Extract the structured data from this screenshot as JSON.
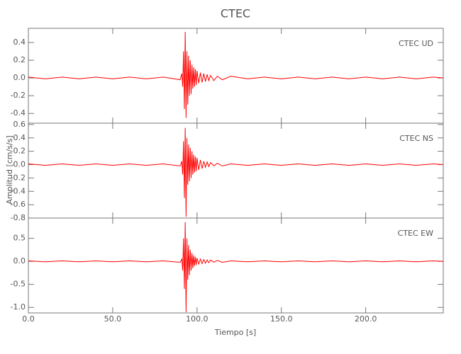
{
  "chart_data": [
    {
      "type": "line",
      "title": "CTEC",
      "label": "CTEC   UD",
      "color": "#ff0000",
      "x": [
        0,
        10,
        20,
        30,
        40,
        50,
        60,
        70,
        80,
        90,
        91,
        91.5,
        92,
        92.5,
        93,
        93.5,
        94,
        94.5,
        95,
        95.5,
        96,
        96.5,
        97,
        97.5,
        98,
        98.5,
        99,
        99.5,
        100,
        101,
        102,
        103,
        104,
        105,
        106,
        107,
        108,
        110,
        112,
        115,
        120,
        130,
        140,
        150,
        160,
        170,
        180,
        190,
        200,
        210,
        220,
        230,
        240,
        246
      ],
      "values": [
        0.01,
        -0.01,
        0.01,
        -0.01,
        0.01,
        -0.01,
        0.01,
        -0.01,
        0.01,
        -0.02,
        0.05,
        -0.1,
        0.3,
        -0.35,
        0.52,
        -0.45,
        0.3,
        -0.3,
        0.25,
        -0.2,
        0.2,
        -0.18,
        0.15,
        -0.12,
        0.12,
        -0.1,
        0.1,
        -0.08,
        0.08,
        -0.06,
        0.06,
        -0.05,
        0.05,
        -0.04,
        0.04,
        -0.03,
        0.03,
        -0.03,
        0.02,
        -0.02,
        0.02,
        -0.01,
        0.01,
        -0.01,
        0.01,
        -0.01,
        0.01,
        -0.01,
        0.01,
        -0.01,
        0.01,
        -0.01,
        0.01,
        0
      ],
      "xlim": [
        0,
        246
      ],
      "xticks": [
        0,
        50,
        100,
        150,
        200
      ],
      "ylim": [
        -0.51,
        0.56
      ],
      "yticks": [
        -0.4,
        -0.2,
        0.0,
        0.2,
        0.4
      ]
    },
    {
      "type": "line",
      "ylabel": "Amplitud [cm/s/s]",
      "label": "CTEC   NS",
      "color": "#ff0000",
      "x": [
        0,
        10,
        20,
        30,
        40,
        50,
        60,
        70,
        80,
        90,
        91,
        91.5,
        92,
        92.5,
        93,
        93.5,
        94,
        94.5,
        95,
        95.5,
        96,
        96.5,
        97,
        97.5,
        98,
        98.5,
        99,
        99.5,
        100,
        101,
        102,
        103,
        104,
        105,
        106,
        107,
        108,
        110,
        112,
        115,
        120,
        130,
        140,
        150,
        160,
        170,
        180,
        190,
        200,
        210,
        220,
        230,
        240,
        246
      ],
      "values": [
        0.01,
        -0.01,
        0.01,
        -0.01,
        0.01,
        -0.01,
        0.01,
        -0.01,
        0.01,
        -0.02,
        0.05,
        -0.15,
        0.35,
        -0.5,
        0.55,
        -0.78,
        0.4,
        -0.3,
        0.3,
        -0.25,
        0.25,
        -0.2,
        0.2,
        -0.15,
        0.15,
        -0.12,
        0.12,
        -0.1,
        0.1,
        -0.08,
        0.07,
        -0.06,
        0.05,
        -0.04,
        0.04,
        -0.03,
        0.03,
        -0.02,
        0.02,
        -0.02,
        0.01,
        -0.01,
        0.01,
        -0.01,
        0.01,
        -0.01,
        0.01,
        -0.01,
        0.01,
        -0.01,
        0.01,
        -0.01,
        0.01,
        0
      ],
      "xlim": [
        0,
        246
      ],
      "xticks": [
        0,
        50,
        100,
        150,
        200
      ],
      "ylim": [
        -0.8,
        0.62
      ],
      "yticks": [
        -0.8,
        -0.6,
        -0.4,
        -0.2,
        0.0,
        0.2,
        0.4,
        0.6
      ]
    },
    {
      "type": "line",
      "xlabel": "Tiempo [s]",
      "label": "CTEC   EW",
      "color": "#ff0000",
      "x": [
        0,
        10,
        20,
        30,
        40,
        50,
        60,
        70,
        80,
        90,
        91,
        91.5,
        92,
        92.5,
        93,
        93.5,
        94,
        94.5,
        95,
        95.5,
        96,
        96.5,
        97,
        97.5,
        98,
        98.5,
        99,
        99.5,
        100,
        101,
        102,
        103,
        104,
        105,
        106,
        107,
        108,
        110,
        112,
        115,
        120,
        130,
        140,
        150,
        160,
        170,
        180,
        190,
        200,
        210,
        220,
        230,
        240,
        246
      ],
      "values": [
        0.01,
        -0.01,
        0.01,
        -0.01,
        0.01,
        -0.01,
        0.01,
        -0.01,
        0.01,
        -0.02,
        0.05,
        -0.2,
        0.5,
        -0.6,
        0.85,
        -1.1,
        0.5,
        -0.4,
        0.35,
        -0.3,
        0.25,
        -0.2,
        0.18,
        -0.15,
        0.13,
        -0.1,
        0.1,
        -0.08,
        0.07,
        -0.06,
        0.05,
        -0.05,
        0.04,
        -0.04,
        0.03,
        -0.03,
        0.03,
        -0.02,
        0.02,
        -0.02,
        0.01,
        -0.01,
        0.01,
        -0.01,
        0.01,
        -0.01,
        0.01,
        -0.01,
        0.01,
        -0.01,
        0.01,
        -0.01,
        0.01,
        0
      ],
      "xlim": [
        0,
        246
      ],
      "xticks": [
        0,
        50,
        100,
        150,
        200
      ],
      "ylim": [
        -1.12,
        0.94
      ],
      "yticks": [
        -1.0,
        -0.5,
        0.0,
        0.5
      ]
    }
  ]
}
